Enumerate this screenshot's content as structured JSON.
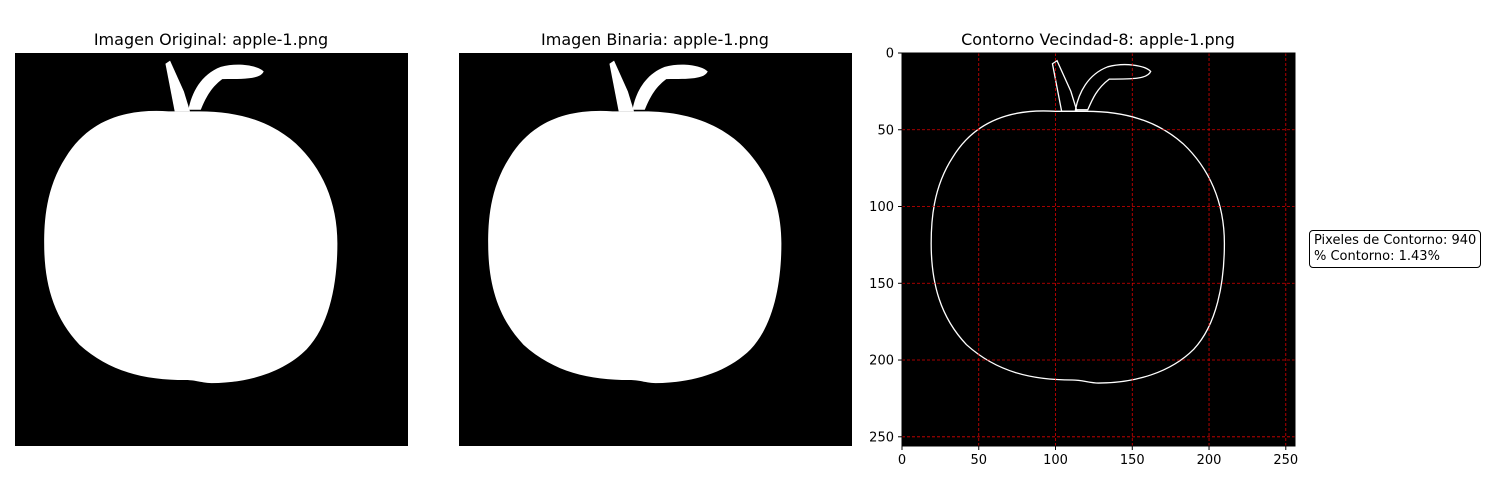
{
  "chart_data": [
    {
      "type": "image",
      "title": "Imagen Original: apple-1.png",
      "content": "filled-apple",
      "axes_visible": false
    },
    {
      "type": "image",
      "title": "Imagen Binaria: apple-1.png",
      "content": "filled-apple",
      "axes_visible": false
    },
    {
      "type": "image",
      "title": "Contorno Vecindad-8: apple-1.png",
      "content": "apple-contour",
      "axes_visible": true,
      "grid": true,
      "grid_color": "#ff0000",
      "xlim": [
        0,
        256
      ],
      "ylim": [
        256,
        0
      ],
      "xticks": [
        0,
        50,
        100,
        150,
        200,
        250
      ],
      "yticks": [
        0,
        50,
        100,
        150,
        200,
        250
      ]
    }
  ],
  "stats": {
    "line1": "Pixeles de Contorno: 940",
    "line2": "% Contorno: 1.43%"
  }
}
